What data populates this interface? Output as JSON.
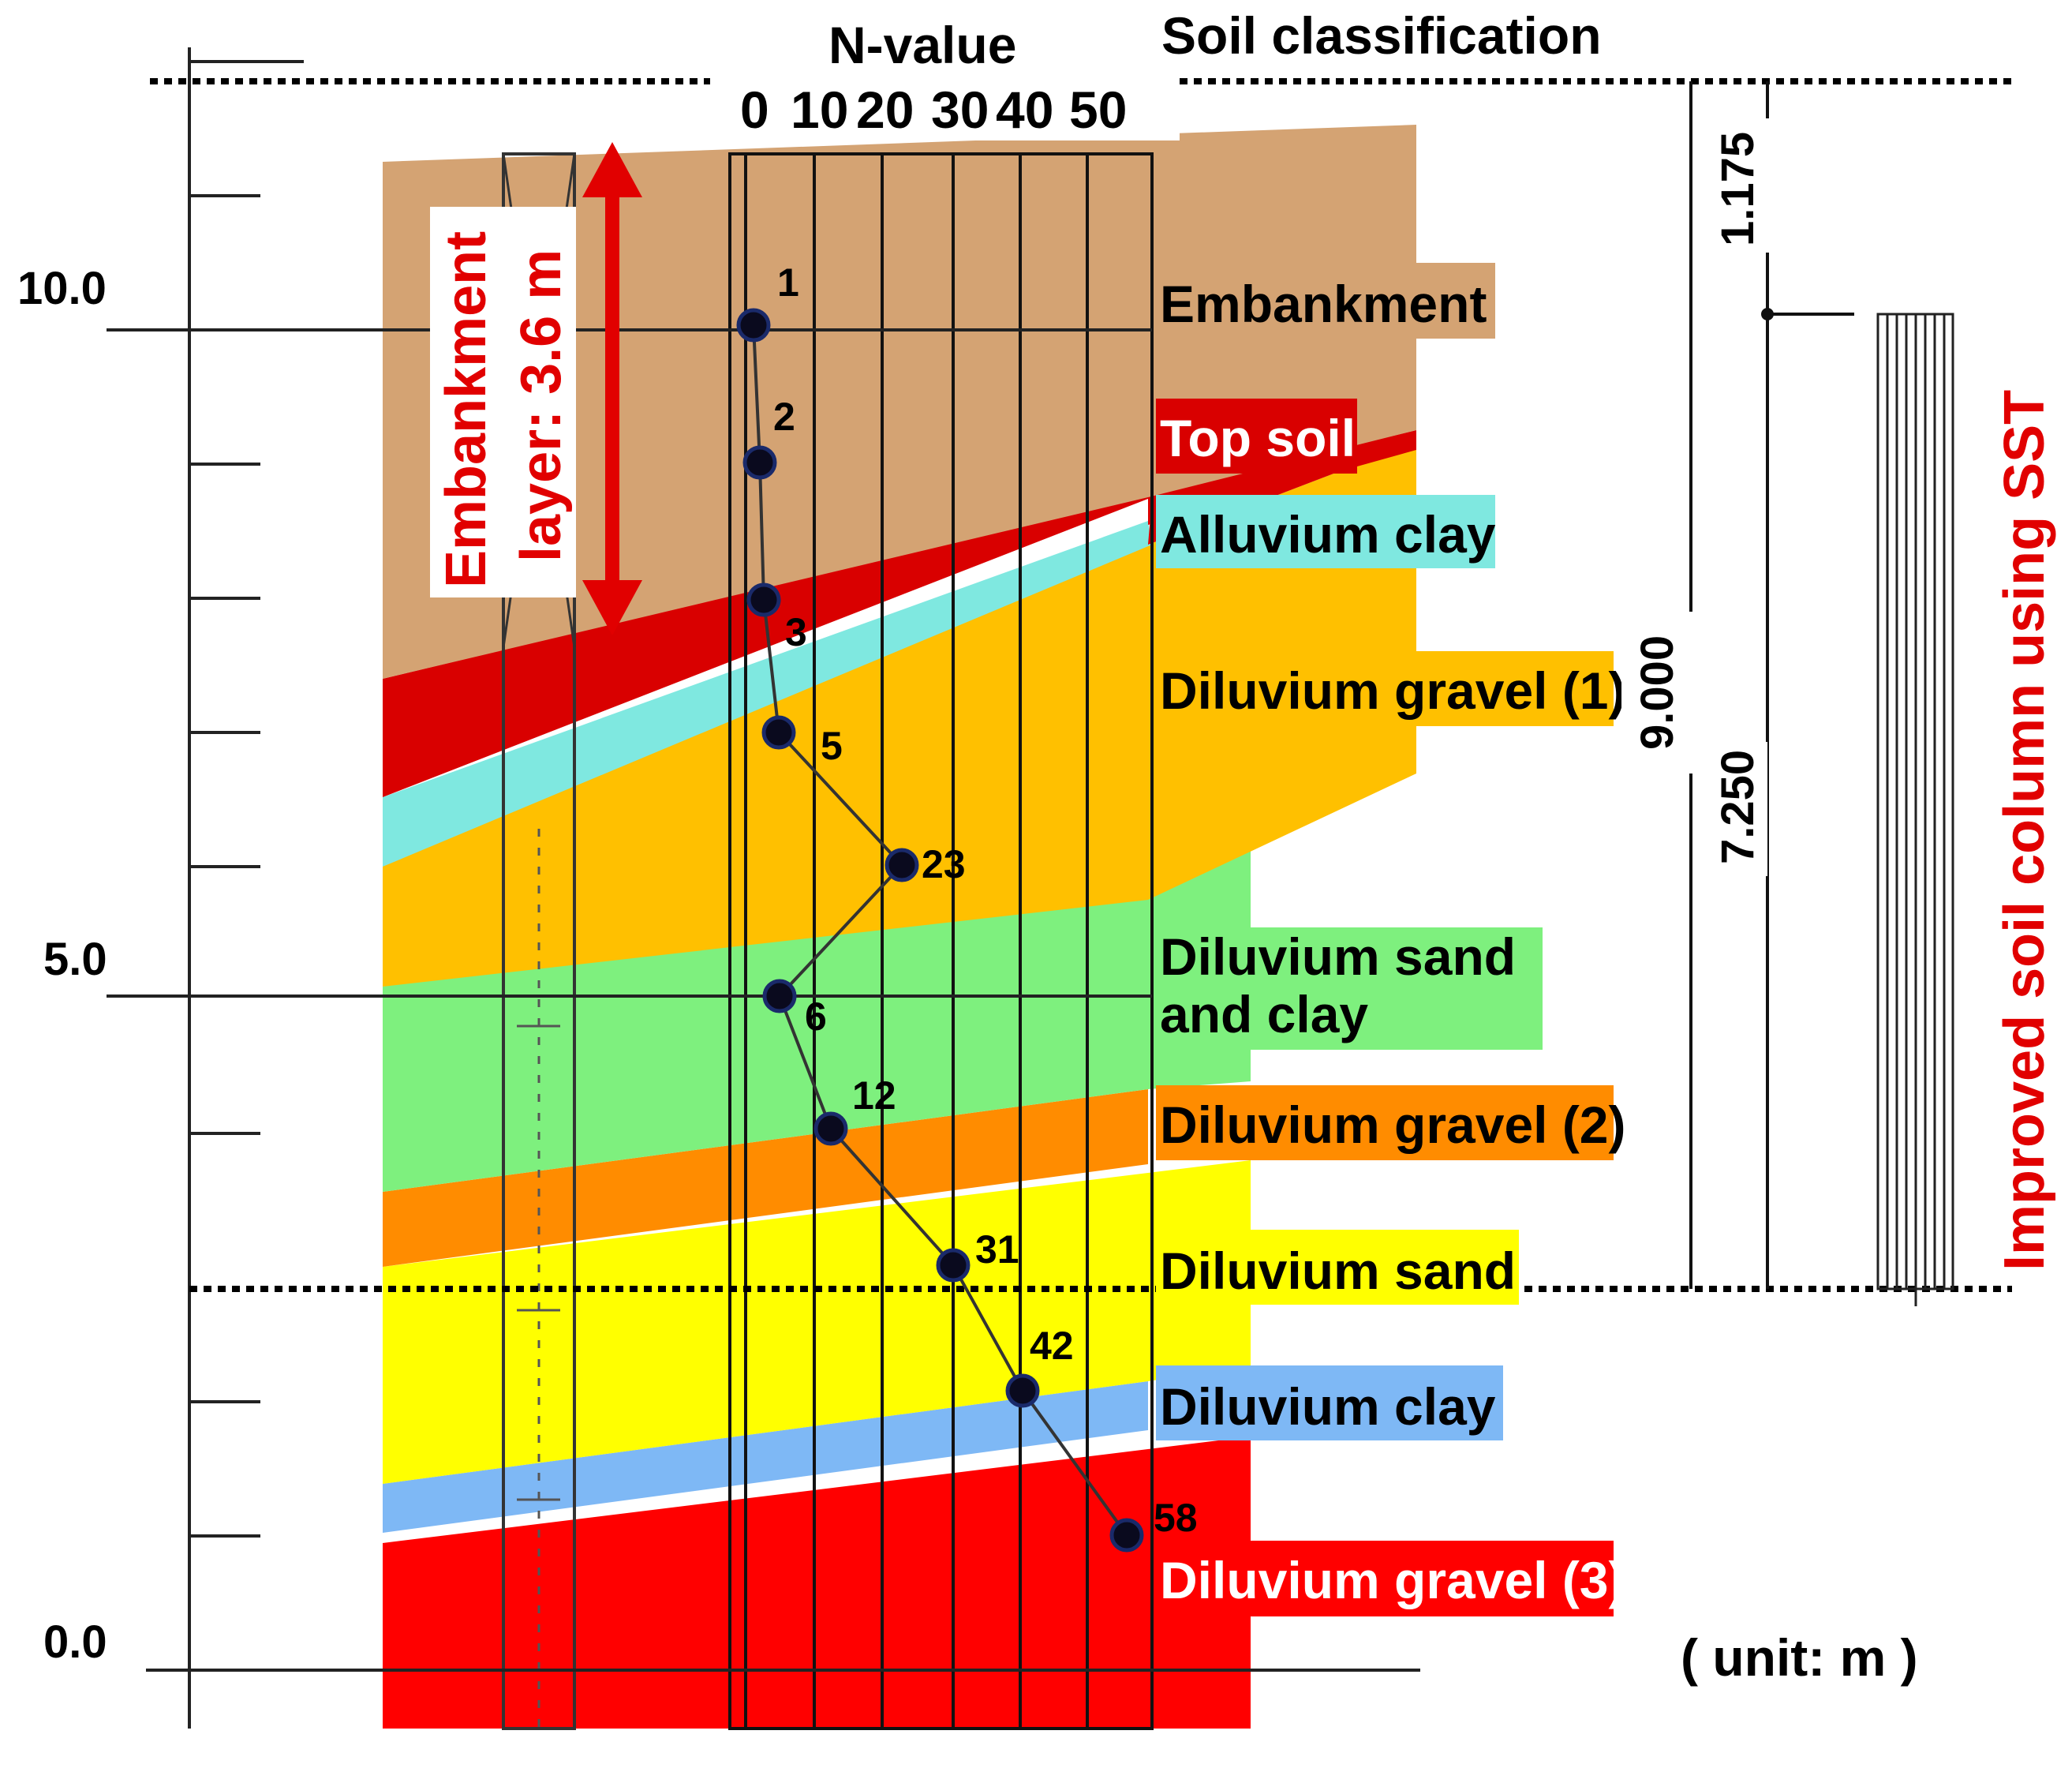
{
  "header": {
    "n_value": "N-value",
    "soil_classification": "Soil classification",
    "n_axis_ticks": [
      "0",
      "10",
      "20",
      "30",
      "40",
      "50"
    ]
  },
  "elevation_ticks": [
    "10.0",
    "5.0",
    "0.0"
  ],
  "embankment_annotation": {
    "line1": "Embankment",
    "line2": "layer: 3.6 m"
  },
  "layers": [
    {
      "label": "Embankment",
      "color": "#d4a373",
      "text_color": "#000000"
    },
    {
      "label": "Top soil",
      "color": "#d90000",
      "text_color": "#ffffff"
    },
    {
      "label": "Alluvium clay",
      "color": "#7fe8e0",
      "text_color": "#000000"
    },
    {
      "label": "Diluvium gravel (1)",
      "color": "#ffc000",
      "text_color": "#000000"
    },
    {
      "label": "Diluvium sand",
      "label2": "and clay",
      "color": "#7ef07e",
      "text_color": "#000000"
    },
    {
      "label": "Diluvium gravel (2)",
      "color": "#ff8c00",
      "text_color": "#000000"
    },
    {
      "label": "Diluvium sand",
      "color": "#ffff00",
      "text_color": "#000000"
    },
    {
      "label": "Diluvium clay",
      "color": "#7eb8f5",
      "text_color": "#000000"
    },
    {
      "label": "Diluvium gravel (3)",
      "color": "#ff0000",
      "text_color": "#ffffff"
    }
  ],
  "n_values": [
    "1",
    "2",
    "3",
    "5",
    "23",
    "6",
    "12",
    "31",
    "42",
    "58"
  ],
  "dimensions": {
    "total": "9.000",
    "top": "1.175",
    "improved": "7.250"
  },
  "improved_column_label": "Improved soil column using SST",
  "unit_label": "( unit: m )"
}
